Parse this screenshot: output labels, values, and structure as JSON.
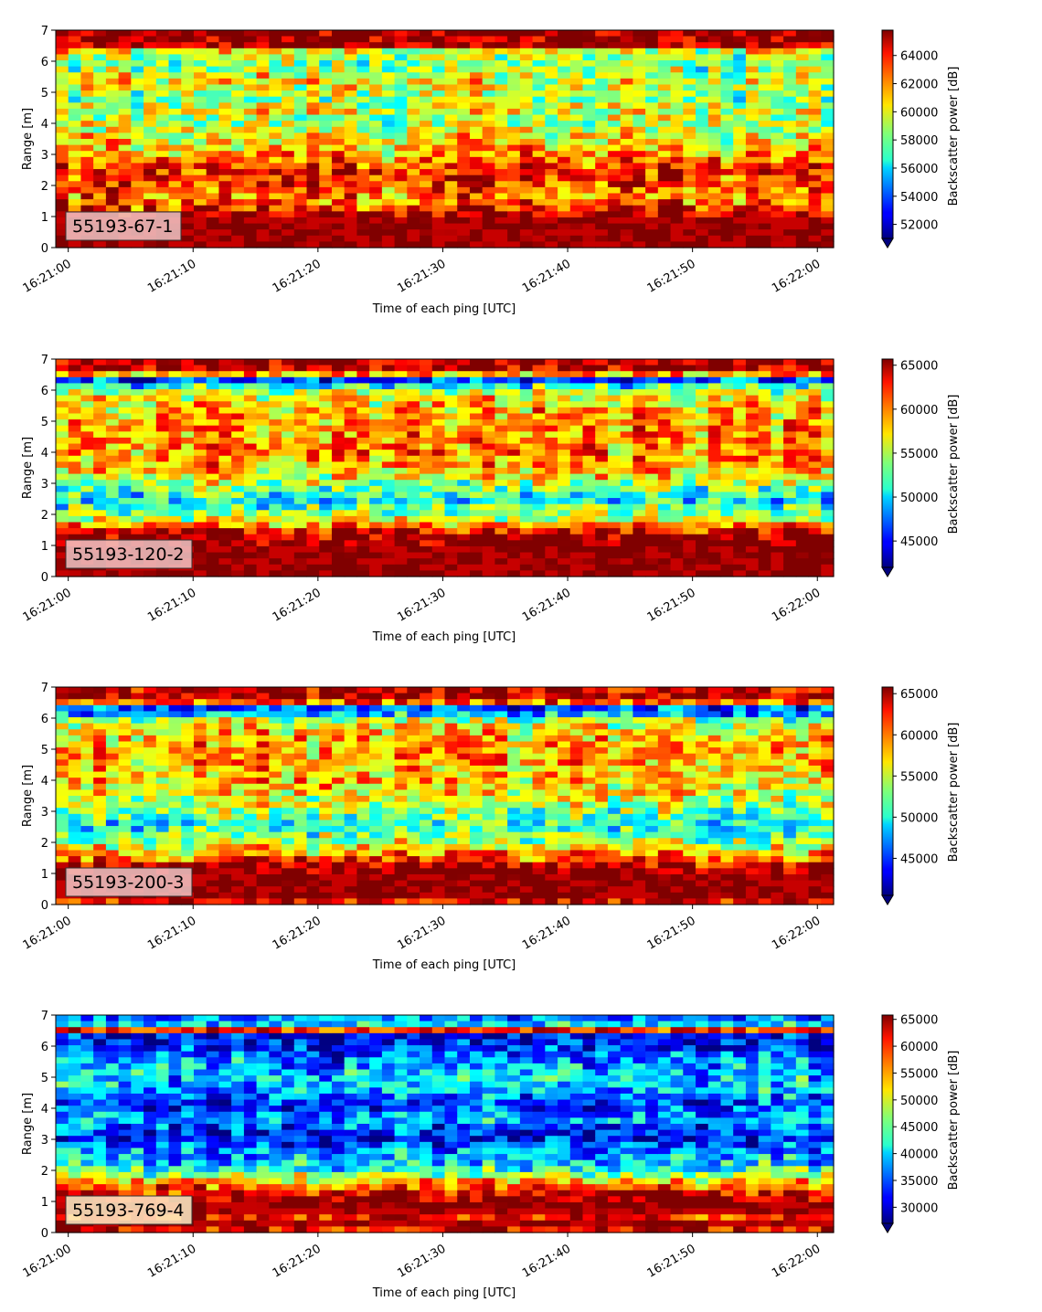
{
  "figure": {
    "x_label": "Time of each ping [UTC]",
    "y_label": "Range [m]",
    "colorbar_label": "Backscatter power [dB]"
  },
  "chart_data": [
    {
      "type": "heatmap",
      "label": "55193-67-1",
      "x_ticks": [
        "16:21:00",
        "16:21:10",
        "16:21:20",
        "16:21:30",
        "16:21:40",
        "16:21:50",
        "16:22:00"
      ],
      "y_ticks": [
        "0",
        "1",
        "2",
        "3",
        "4",
        "5",
        "6",
        "7"
      ],
      "xlim_seconds": [
        -1,
        61.3
      ],
      "ylim": [
        0,
        7
      ],
      "colorbar": {
        "min": 51000,
        "max": 65800,
        "ticks": [
          52000,
          54000,
          56000,
          58000,
          60000,
          62000,
          64000
        ]
      },
      "profile_top_to_bottom": [
        1.0,
        0.99,
        0.98,
        0.62,
        0.55,
        0.5,
        0.52,
        0.6,
        0.62,
        0.58,
        0.55,
        0.52,
        0.58,
        0.6,
        0.56,
        0.55,
        0.58,
        0.62,
        0.65,
        0.68,
        0.7,
        0.78,
        0.82,
        0.84,
        0.84,
        0.82,
        0.78,
        0.76,
        0.78,
        0.86,
        0.95,
        0.92,
        0.98,
        1.0,
        0.97,
        0.95
      ],
      "colormap": "jet",
      "cmap": "jet"
    },
    {
      "type": "heatmap",
      "label": "55193-120-2",
      "x_ticks": [
        "16:21:00",
        "16:21:10",
        "16:21:20",
        "16:21:30",
        "16:21:40",
        "16:21:50",
        "16:22:00"
      ],
      "y_ticks": [
        "0",
        "1",
        "2",
        "3",
        "4",
        "5",
        "6",
        "7"
      ],
      "xlim_seconds": [
        -1,
        61.3
      ],
      "ylim": [
        0,
        7
      ],
      "colorbar": {
        "min": 42000,
        "max": 65700,
        "ticks": [
          45000,
          50000,
          55000,
          60000,
          65000
        ]
      },
      "profile_top_to_bottom": [
        0.98,
        0.95,
        0.72,
        0.2,
        0.4,
        0.55,
        0.62,
        0.65,
        0.68,
        0.7,
        0.72,
        0.74,
        0.72,
        0.75,
        0.76,
        0.74,
        0.72,
        0.7,
        0.66,
        0.62,
        0.55,
        0.48,
        0.42,
        0.38,
        0.45,
        0.5,
        0.58,
        0.75,
        0.9,
        1.0,
        1.0,
        0.98,
        1.0,
        1.0,
        0.98,
        1.0
      ],
      "colormap": "jet",
      "cmap": "jet"
    },
    {
      "type": "heatmap",
      "label": "55193-200-3",
      "x_ticks": [
        "16:21:00",
        "16:21:10",
        "16:21:20",
        "16:21:30",
        "16:21:40",
        "16:21:50",
        "16:22:00"
      ],
      "y_ticks": [
        "0",
        "1",
        "2",
        "3",
        "4",
        "5",
        "6",
        "7"
      ],
      "xlim_seconds": [
        -1,
        61.3
      ],
      "ylim": [
        0,
        7
      ],
      "colorbar": {
        "min": 40500,
        "max": 65800,
        "ticks": [
          45000,
          50000,
          55000,
          60000,
          65000
        ]
      },
      "profile_top_to_bottom": [
        0.92,
        0.95,
        0.78,
        0.2,
        0.3,
        0.52,
        0.62,
        0.66,
        0.68,
        0.7,
        0.7,
        0.72,
        0.7,
        0.68,
        0.66,
        0.68,
        0.66,
        0.62,
        0.58,
        0.55,
        0.5,
        0.45,
        0.4,
        0.42,
        0.48,
        0.55,
        0.62,
        0.72,
        0.82,
        0.95,
        1.0,
        1.0,
        0.98,
        1.0,
        0.97,
        0.9
      ],
      "colormap": "jet",
      "cmap": "jet"
    },
    {
      "type": "heatmap",
      "label": "55193-769-4",
      "x_ticks": [
        "16:21:00",
        "16:21:10",
        "16:21:20",
        "16:21:30",
        "16:21:40",
        "16:21:50",
        "16:22:00"
      ],
      "y_ticks": [
        "0",
        "1",
        "2",
        "3",
        "4",
        "5",
        "6",
        "7"
      ],
      "xlim_seconds": [
        -1,
        61.3
      ],
      "ylim": [
        0,
        7
      ],
      "colorbar": {
        "min": 27000,
        "max": 65800,
        "ticks": [
          30000,
          35000,
          40000,
          45000,
          50000,
          55000,
          60000,
          65000
        ]
      },
      "profile_top_to_bottom": [
        0.25,
        0.35,
        0.85,
        0.1,
        0.12,
        0.18,
        0.22,
        0.26,
        0.3,
        0.32,
        0.34,
        0.32,
        0.3,
        0.24,
        0.18,
        0.2,
        0.26,
        0.3,
        0.22,
        0.16,
        0.12,
        0.2,
        0.26,
        0.3,
        0.35,
        0.42,
        0.55,
        0.7,
        0.82,
        0.92,
        0.98,
        1.0,
        0.92,
        0.85,
        0.95,
        0.9
      ],
      "colormap": "jet",
      "cmap": "jet"
    }
  ]
}
